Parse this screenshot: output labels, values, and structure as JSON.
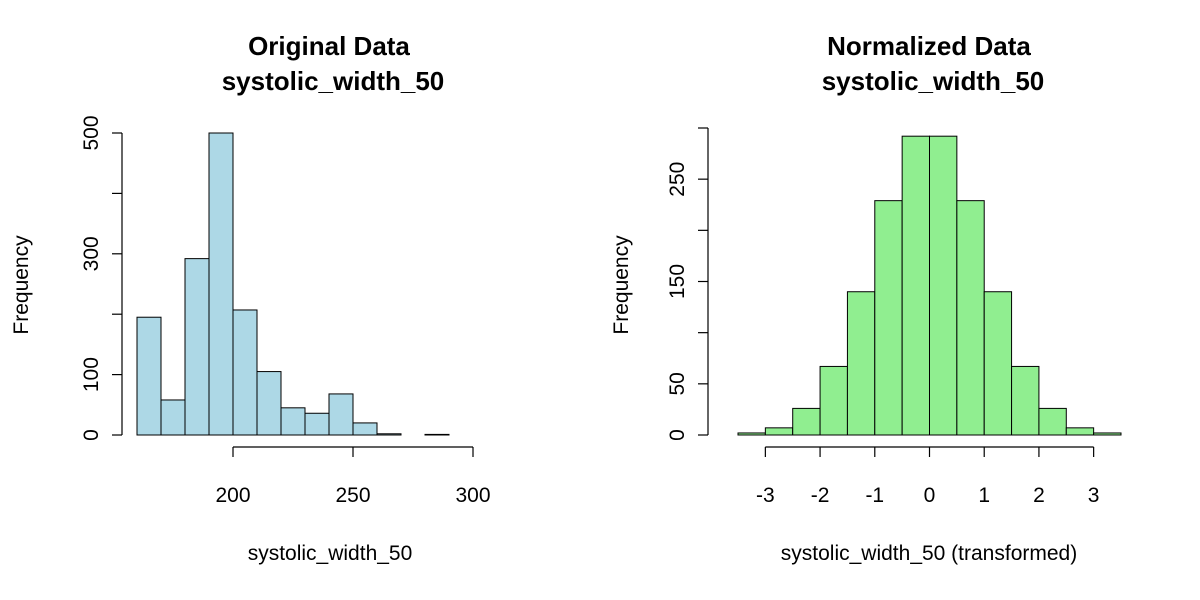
{
  "chart_data": [
    {
      "type": "bar",
      "title": "Original Data",
      "subtitle": "systolic_width_50",
      "xlabel": "systolic_width_50",
      "ylabel": "Frequency",
      "bar_color": "#add8e6",
      "xlim": [
        160,
        320
      ],
      "ylim": [
        0,
        500
      ],
      "xticks": [
        200,
        250,
        300
      ],
      "yticks": [
        0,
        100,
        300,
        500
      ],
      "bins": [
        {
          "x0": 160,
          "x1": 170,
          "count": 195
        },
        {
          "x0": 170,
          "x1": 180,
          "count": 58
        },
        {
          "x0": 180,
          "x1": 190,
          "count": 292
        },
        {
          "x0": 190,
          "x1": 200,
          "count": 500
        },
        {
          "x0": 200,
          "x1": 210,
          "count": 207
        },
        {
          "x0": 210,
          "x1": 220,
          "count": 105
        },
        {
          "x0": 220,
          "x1": 230,
          "count": 45
        },
        {
          "x0": 230,
          "x1": 240,
          "count": 36
        },
        {
          "x0": 240,
          "x1": 250,
          "count": 68
        },
        {
          "x0": 250,
          "x1": 260,
          "count": 20
        },
        {
          "x0": 260,
          "x1": 270,
          "count": 2
        },
        {
          "x0": 270,
          "x1": 280,
          "count": 0
        },
        {
          "x0": 280,
          "x1": 290,
          "count": 1
        },
        {
          "x0": 290,
          "x1": 300,
          "count": 0
        },
        {
          "x0": 300,
          "x1": 310,
          "count": 0
        },
        {
          "x0": 310,
          "x1": 320,
          "count": 0
        }
      ]
    },
    {
      "type": "bar",
      "title": "Normalized Data",
      "subtitle": "systolic_width_50",
      "xlabel": "systolic_width_50 (transformed)",
      "ylabel": "Frequency",
      "bar_color": "#90ee90",
      "xlim": [
        -3.5,
        3.5
      ],
      "ylim": [
        0,
        300
      ],
      "xticks": [
        -3,
        -2,
        -1,
        0,
        1,
        2,
        3
      ],
      "yticks": [
        0,
        50,
        150,
        250
      ],
      "bins": [
        {
          "x0": -3.5,
          "x1": -3.0,
          "count": 2
        },
        {
          "x0": -3.0,
          "x1": -2.5,
          "count": 7
        },
        {
          "x0": -2.5,
          "x1": -2.0,
          "count": 26
        },
        {
          "x0": -2.0,
          "x1": -1.5,
          "count": 67
        },
        {
          "x0": -1.5,
          "x1": -1.0,
          "count": 140
        },
        {
          "x0": -1.0,
          "x1": -0.5,
          "count": 229
        },
        {
          "x0": -0.5,
          "x1": 0.0,
          "count": 292
        },
        {
          "x0": 0.0,
          "x1": 0.5,
          "count": 292
        },
        {
          "x0": 0.5,
          "x1": 1.0,
          "count": 229
        },
        {
          "x0": 1.0,
          "x1": 1.5,
          "count": 140
        },
        {
          "x0": 1.5,
          "x1": 2.0,
          "count": 67
        },
        {
          "x0": 2.0,
          "x1": 2.5,
          "count": 26
        },
        {
          "x0": 2.5,
          "x1": 3.0,
          "count": 7
        },
        {
          "x0": 3.0,
          "x1": 3.5,
          "count": 2
        }
      ]
    }
  ]
}
